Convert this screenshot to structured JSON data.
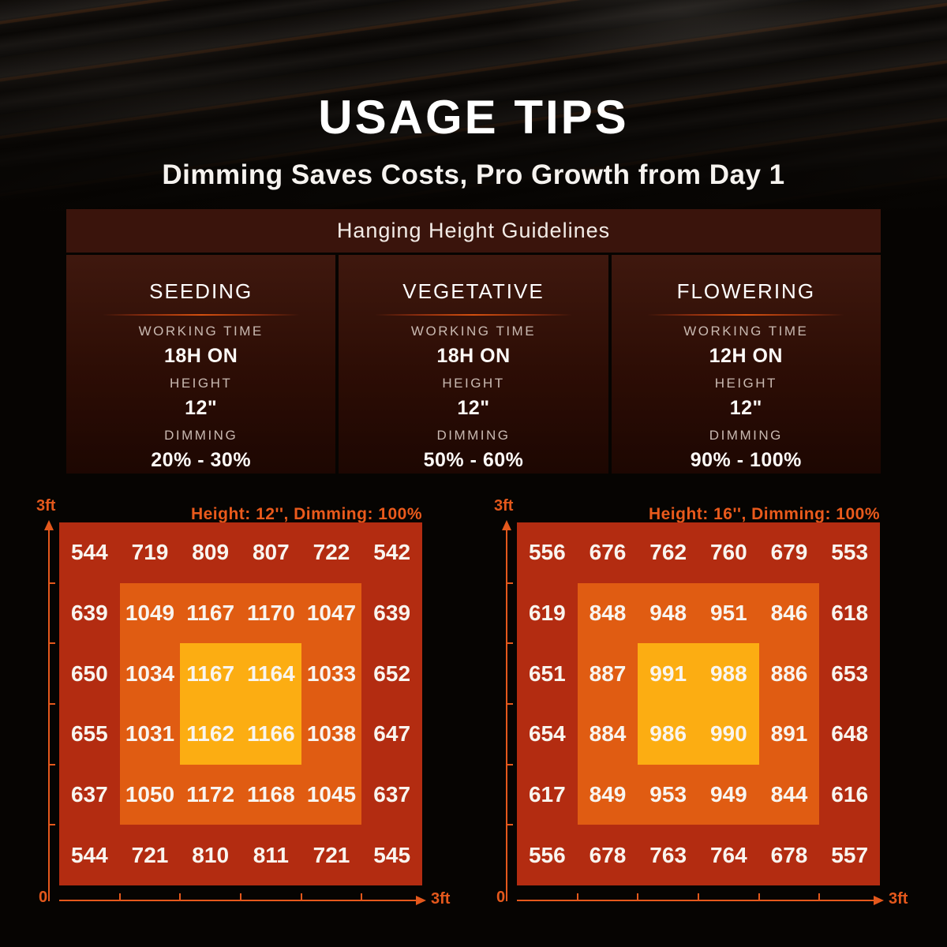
{
  "hero": {
    "title": "USAGE TIPS",
    "subtitle": "Dimming Saves Costs, Pro Growth from Day 1"
  },
  "guidelines": {
    "title": "Hanging Height Guidelines",
    "labels": {
      "working_time": "WORKING TIME",
      "height": "HEIGHT",
      "dimming": "DIMMING"
    },
    "stages": [
      {
        "name": "SEEDING",
        "working_time": "18H ON",
        "height": "12\"",
        "dimming": "20% - 30%"
      },
      {
        "name": "VEGETATIVE",
        "working_time": "18H ON",
        "height": "12\"",
        "dimming": "50% - 60%"
      },
      {
        "name": "FLOWERING",
        "working_time": "12H ON",
        "height": "12\"",
        "dimming": "90% - 100%"
      }
    ]
  },
  "chart_data": [
    {
      "type": "heatmap",
      "title": "Height: 12'', Dimming: 100%",
      "x": {
        "origin": "0",
        "end": "3ft"
      },
      "y": {
        "end": "3ft"
      },
      "grid_size": "6x6",
      "area": "3ft x 3ft",
      "rows": [
        [
          544,
          719,
          809,
          807,
          722,
          542
        ],
        [
          639,
          1049,
          1167,
          1170,
          1047,
          639
        ],
        [
          650,
          1034,
          1167,
          1164,
          1033,
          652
        ],
        [
          655,
          1031,
          1162,
          1166,
          1038,
          647
        ],
        [
          637,
          1050,
          1172,
          1168,
          1045,
          637
        ],
        [
          544,
          721,
          810,
          811,
          721,
          545
        ]
      ],
      "zones": {
        "outer_color": "#b32c11",
        "middle_color": "#e05c12",
        "inner_color": "#fcad12"
      }
    },
    {
      "type": "heatmap",
      "title": "Height: 16'', Dimming: 100%",
      "x": {
        "origin": "0",
        "end": "3ft"
      },
      "y": {
        "end": "3ft"
      },
      "grid_size": "6x6",
      "area": "3ft x 3ft",
      "rows": [
        [
          556,
          676,
          762,
          760,
          679,
          553
        ],
        [
          619,
          848,
          948,
          951,
          846,
          618
        ],
        [
          651,
          887,
          991,
          988,
          886,
          653
        ],
        [
          654,
          884,
          986,
          990,
          891,
          648
        ],
        [
          617,
          849,
          953,
          949,
          844,
          616
        ],
        [
          556,
          678,
          763,
          764,
          678,
          557
        ]
      ],
      "zones": {
        "outer_color": "#b32c11",
        "middle_color": "#e05c12",
        "inner_color": "#fcad12"
      }
    }
  ],
  "colors": {
    "accent_orange": "#ea5a1c",
    "panel_brown": "#3a140c",
    "value_text": "#f9f5ef"
  }
}
